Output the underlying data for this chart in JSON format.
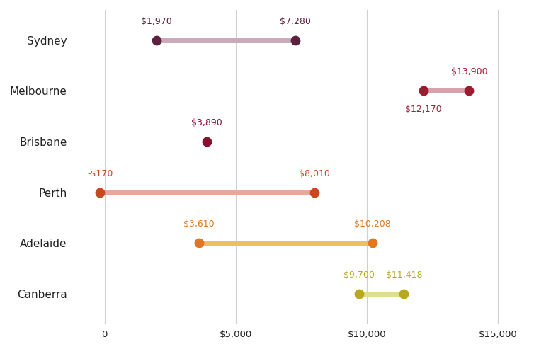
{
  "cities": [
    "Sydney",
    "Melbourne",
    "Brisbane",
    "Perth",
    "Adelaide",
    "Canberra"
  ],
  "low_values": [
    1970,
    12170,
    3890,
    -170,
    3610,
    9700
  ],
  "high_values": [
    7280,
    13900,
    3890,
    8010,
    10208,
    11418
  ],
  "low_labels": [
    "$1,970",
    "$12,170",
    "$3,890",
    "-$170",
    "$3,610",
    "$9,700"
  ],
  "high_labels": [
    "$7,280",
    "$13,900",
    null,
    "$8,010",
    "$10,208",
    "$11,418"
  ],
  "low_label_va": [
    "bottom",
    "top",
    "bottom",
    "bottom",
    "bottom",
    "bottom"
  ],
  "high_label_va": [
    "bottom",
    "bottom",
    null,
    "bottom",
    "bottom",
    "bottom"
  ],
  "low_label_offset": [
    0.28,
    -0.28,
    0.28,
    0.28,
    0.28,
    0.28
  ],
  "high_label_offset": [
    0.28,
    0.28,
    0.0,
    0.28,
    0.28,
    0.28
  ],
  "line_colors": [
    "#c9aab8",
    "#d8a0aa",
    "#c05070",
    "#e8a898",
    "#f2bc60",
    "#dede90"
  ],
  "dot_colors": [
    "#5c2040",
    "#9b1c30",
    "#8b1030",
    "#c84820",
    "#e07820",
    "#b8a820"
  ],
  "label_colors": [
    "#5c2040",
    "#9b1c30",
    "#8b1030",
    "#c84820",
    "#e07820",
    "#b8a820"
  ],
  "xlim": [
    -1200,
    16000
  ],
  "xticks": [
    0,
    5000,
    10000,
    15000
  ],
  "xticklabels": [
    "0",
    "$5,000",
    "$10,000",
    "$15,000"
  ],
  "background_color": "#ffffff",
  "grid_color": "#d0d0d0",
  "font_color": "#222222",
  "dot_size": 80,
  "line_width": 5,
  "label_fontsize": 9,
  "city_fontsize": 11,
  "tick_fontsize": 9.5
}
